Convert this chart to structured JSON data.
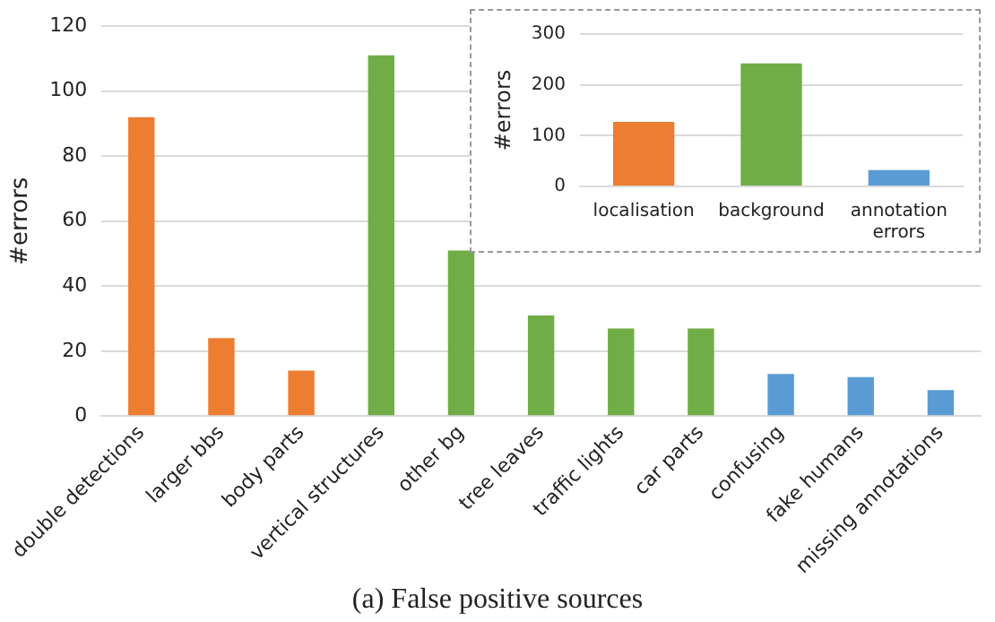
{
  "chart_data": [
    {
      "type": "bar",
      "ylabel": "#errors",
      "categories": [
        "double detections",
        "larger bbs",
        "body parts",
        "vertical structures",
        "other bg",
        "tree leaves",
        "traffic lights",
        "car parts",
        "confusing",
        "fake humans",
        "missing annotations"
      ],
      "values": [
        92,
        24,
        14,
        111,
        51,
        31,
        27,
        27,
        13,
        12,
        8
      ],
      "colors": [
        "#ed7d31",
        "#ed7d31",
        "#ed7d31",
        "#70ad47",
        "#70ad47",
        "#70ad47",
        "#70ad47",
        "#70ad47",
        "#5b9bd5",
        "#5b9bd5",
        "#5b9bd5"
      ],
      "ylim": [
        0,
        120
      ],
      "yticks": [
        0,
        20,
        40,
        60,
        80,
        100,
        120
      ],
      "grid": "y",
      "annotations": [
        "(a) False positive sources"
      ]
    },
    {
      "type": "bar",
      "ylabel": "#errors",
      "categories": [
        "localisation",
        "background",
        "annotation errors"
      ],
      "values": [
        127,
        242,
        32
      ],
      "colors": [
        "#ed7d31",
        "#70ad47",
        "#5b9bd5"
      ],
      "ylim": [
        0,
        300
      ],
      "yticks": [
        0,
        100,
        200,
        300
      ],
      "grid": "y"
    }
  ]
}
